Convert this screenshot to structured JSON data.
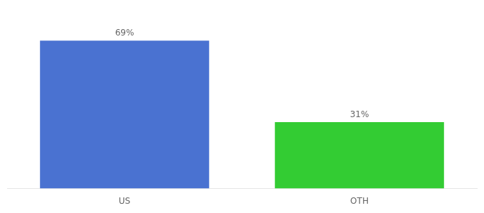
{
  "chart_data": {
    "type": "bar",
    "categories": [
      "US",
      "OTH"
    ],
    "values": [
      69,
      31
    ],
    "value_labels": [
      "69%",
      "31%"
    ],
    "colors": [
      "#4a72d1",
      "#33cc33"
    ],
    "ylim": [
      0,
      80
    ],
    "grid": false,
    "data_labels": true,
    "tick_labels": "x"
  }
}
